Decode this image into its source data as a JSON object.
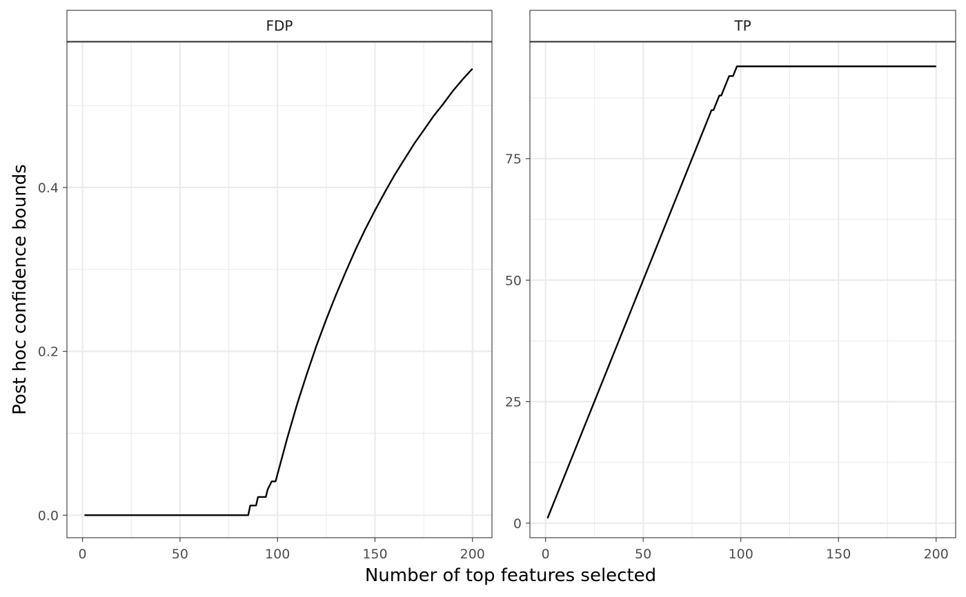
{
  "chart_data": {
    "type": "line",
    "xlabel": "Number of top features selected",
    "ylabel": "Post hoc confidence bounds",
    "grid": true,
    "panels": [
      {
        "strip": "FDP",
        "xlim": [
          -8,
          210
        ],
        "ylim": [
          -0.0275,
          0.5775
        ],
        "x_ticks": [
          0,
          50,
          100,
          150,
          200
        ],
        "y_ticks": [
          0.0,
          0.2,
          0.4
        ],
        "y_tick_labels": [
          "0.0",
          "0.2",
          "0.4"
        ],
        "series": [
          {
            "x": [
              1,
              85,
              86,
              87,
              89,
              90,
              91,
              94,
              95,
              97,
              98,
              99,
              100,
              105,
              110,
              115,
              120,
              125,
              130,
              135,
              140,
              145,
              150,
              155,
              160,
              165,
              170,
              175,
              180,
              185,
              190,
              195,
              200
            ],
            "values": [
              0,
              0,
              0.0118,
              0.0118,
              0.0118,
              0.0222,
              0.0222,
              0.0222,
              0.0316,
              0.0412,
              0.0412,
              0.0412,
              0.05,
              0.094,
              0.135,
              0.172,
              0.207,
              0.239,
              0.269,
              0.297,
              0.324,
              0.349,
              0.372,
              0.394,
              0.415,
              0.434,
              0.453,
              0.47,
              0.487,
              0.502,
              0.518,
              0.532,
              0.545
            ]
          }
        ]
      },
      {
        "strip": "TP",
        "xlim": [
          -8,
          210
        ],
        "ylim": [
          -3,
          99
        ],
        "x_ticks": [
          0,
          50,
          100,
          150,
          200
        ],
        "y_ticks": [
          0,
          25,
          50,
          75
        ],
        "y_tick_labels": [
          "0",
          "25",
          "50",
          "75"
        ],
        "series": [
          {
            "x": [
              1,
              85,
              86,
              88,
              89,
              90,
              91,
              93,
              94,
              95,
              96,
              97,
              98,
              200
            ],
            "values": [
              1,
              85,
              85,
              87,
              88,
              88,
              89,
              91,
              92,
              92,
              92,
              93,
              94,
              94
            ]
          }
        ]
      }
    ]
  }
}
